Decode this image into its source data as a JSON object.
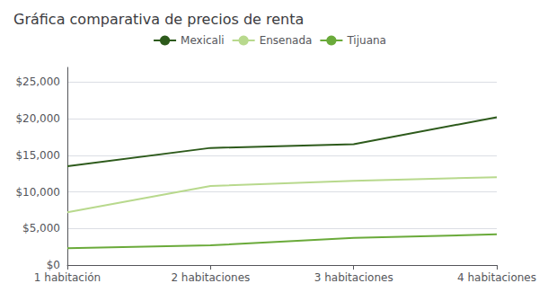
{
  "chart_data": {
    "type": "line",
    "title": "Gráfica comparativa de precios de renta",
    "categories": [
      "1 habitación",
      "2 habitaciones",
      "3 habitaciones",
      "4 habitaciones"
    ],
    "series": [
      {
        "name": "Mexicali",
        "color": "#2d5a1b",
        "values": [
          13500,
          16000,
          16500,
          20200
        ]
      },
      {
        "name": "Ensenada",
        "color": "#b8d98d",
        "values": [
          7200,
          10800,
          11500,
          12000
        ]
      },
      {
        "name": "Tijuana",
        "color": "#6aaa3a",
        "values": [
          2300,
          2700,
          3700,
          4200
        ]
      }
    ],
    "ylim": [
      0,
      27000
    ],
    "yticks": [
      {
        "value": 0,
        "label": "$0"
      },
      {
        "value": 5000,
        "label": "$5,000"
      },
      {
        "value": 10000,
        "label": "$10,000"
      },
      {
        "value": 15000,
        "label": "$15,000"
      },
      {
        "value": 20000,
        "label": "$20,000"
      },
      {
        "value": 25000,
        "label": "$25,000"
      }
    ],
    "grid": true,
    "legend": "top"
  }
}
